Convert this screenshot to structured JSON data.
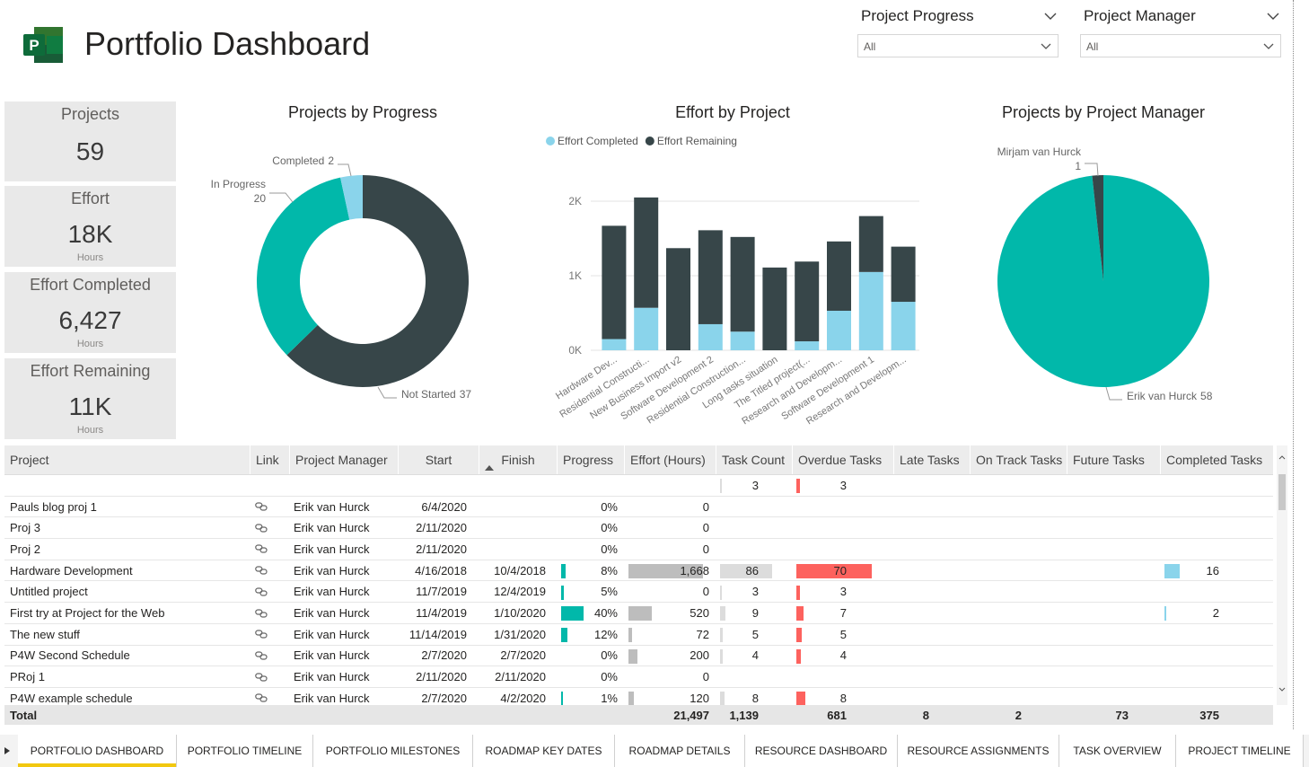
{
  "header": {
    "title": "Portfolio Dashboard"
  },
  "filters": [
    {
      "label": "Project Progress",
      "value": "All"
    },
    {
      "label": "Project Manager",
      "value": "All"
    }
  ],
  "kpis": [
    {
      "label": "Projects",
      "value": "59"
    },
    {
      "label": "Effort",
      "value": "18K",
      "unit": "Hours"
    },
    {
      "label": "Effort Completed",
      "value": "6,427",
      "unit": "Hours"
    },
    {
      "label": "Effort Remaining",
      "value": "11K",
      "unit": "Hours"
    }
  ],
  "chart_data": [
    {
      "type": "pie",
      "title": "Projects by Progress",
      "hole": true,
      "categories": [
        "Not Started",
        "In Progress",
        "Completed"
      ],
      "values": [
        37,
        20,
        2
      ],
      "colors": [
        "#374649",
        "#01B8AA",
        "#8AD4EB"
      ]
    },
    {
      "type": "bar",
      "stacked": true,
      "title": "Effort by Project",
      "categories": [
        "Hardware Dev...",
        "Residential Constructi...",
        "New Business Import v2",
        "Software Development 2",
        "Residential Construction...",
        "Long tasks situation",
        "The Titled project(...",
        "Research and Developm...",
        "Software Development 1",
        "Research and Developm..."
      ],
      "series": [
        {
          "name": "Effort Completed",
          "color": "#8AD4EB",
          "values": [
            150,
            570,
            0,
            350,
            250,
            0,
            120,
            530,
            1050,
            650
          ]
        },
        {
          "name": "Effort Remaining",
          "color": "#374649",
          "values": [
            1520,
            1480,
            1370,
            1260,
            1270,
            1110,
            1070,
            930,
            750,
            740
          ]
        }
      ],
      "ylim": [
        0,
        2100
      ],
      "yticks": [
        {
          "value": 0,
          "label": "0K"
        },
        {
          "value": 1000,
          "label": "1K"
        },
        {
          "value": 2000,
          "label": "2K"
        }
      ],
      "grid": true
    },
    {
      "type": "pie",
      "title": "Projects by Project Manager",
      "hole": false,
      "categories": [
        "Erik van Hurck",
        "Mirjam van Hurck"
      ],
      "values": [
        58,
        1
      ],
      "colors": [
        "#01B8AA",
        "#374649"
      ]
    }
  ],
  "table": {
    "columns": [
      "Project",
      "Link",
      "Project Manager",
      "Start",
      "Finish",
      "Progress",
      "Effort (Hours)",
      "Task Count",
      "Overdue Tasks",
      "Late Tasks",
      "On Track Tasks",
      "Future Tasks",
      "Completed Tasks"
    ],
    "rows": [
      [
        null,
        null,
        null,
        null,
        null,
        null,
        null,
        "3",
        "3",
        null,
        null,
        null,
        null
      ],
      [
        "Pauls blog proj 1",
        null,
        "Erik van Hurck",
        "6/4/2020",
        null,
        "0%",
        "0",
        null,
        null,
        null,
        null,
        null,
        null
      ],
      [
        "Proj 3",
        null,
        "Erik van Hurck",
        "2/11/2020",
        null,
        "0%",
        "0",
        null,
        null,
        null,
        null,
        null,
        null
      ],
      [
        "Proj 2",
        null,
        "Erik van Hurck",
        "2/11/2020",
        null,
        "0%",
        "0",
        null,
        null,
        null,
        null,
        null,
        null
      ],
      [
        "Hardware Development",
        null,
        "Erik van Hurck",
        "4/16/2018",
        "10/4/2018",
        "8%",
        "1,668",
        "86",
        "70",
        null,
        null,
        null,
        "16"
      ],
      [
        "Untitled project",
        null,
        "Erik van Hurck",
        "11/7/2019",
        "12/4/2019",
        "5%",
        "0",
        "3",
        "3",
        null,
        null,
        null,
        null
      ],
      [
        "First try at Project for the Web",
        null,
        "Erik van Hurck",
        "11/4/2019",
        "1/10/2020",
        "40%",
        "520",
        "9",
        "7",
        null,
        null,
        null,
        "2"
      ],
      [
        "The new stuff",
        null,
        "Erik van Hurck",
        "11/14/2019",
        "1/31/2020",
        "12%",
        "72",
        "5",
        "5",
        null,
        null,
        null,
        null
      ],
      [
        "P4W Second Schedule",
        null,
        "Erik van Hurck",
        "2/7/2020",
        "2/7/2020",
        "0%",
        "200",
        "4",
        "4",
        null,
        null,
        null,
        null
      ],
      [
        "PRoj 1",
        null,
        "Erik van Hurck",
        "2/11/2020",
        "2/11/2020",
        "0%",
        "0",
        null,
        null,
        null,
        null,
        null,
        null
      ],
      [
        "P4W example schedule",
        null,
        "Erik van Hurck",
        "2/7/2020",
        "4/2/2020",
        "1%",
        "120",
        "8",
        "8",
        null,
        null,
        null,
        null
      ]
    ],
    "total": [
      "Total",
      null,
      null,
      null,
      null,
      null,
      "21,497",
      "1,139",
      "681",
      "8",
      "2",
      "73",
      "375"
    ]
  },
  "tabs": {
    "items": [
      "PORTFOLIO DASHBOARD",
      "PORTFOLIO TIMELINE",
      "PORTFOLIO MILESTONES",
      "ROADMAP KEY DATES",
      "ROADMAP DETAILS",
      "RESOURCE DASHBOARD",
      "RESOURCE ASSIGNMENTS",
      "TASK OVERVIEW",
      "PROJECT TIMELINE"
    ],
    "active": 0
  }
}
